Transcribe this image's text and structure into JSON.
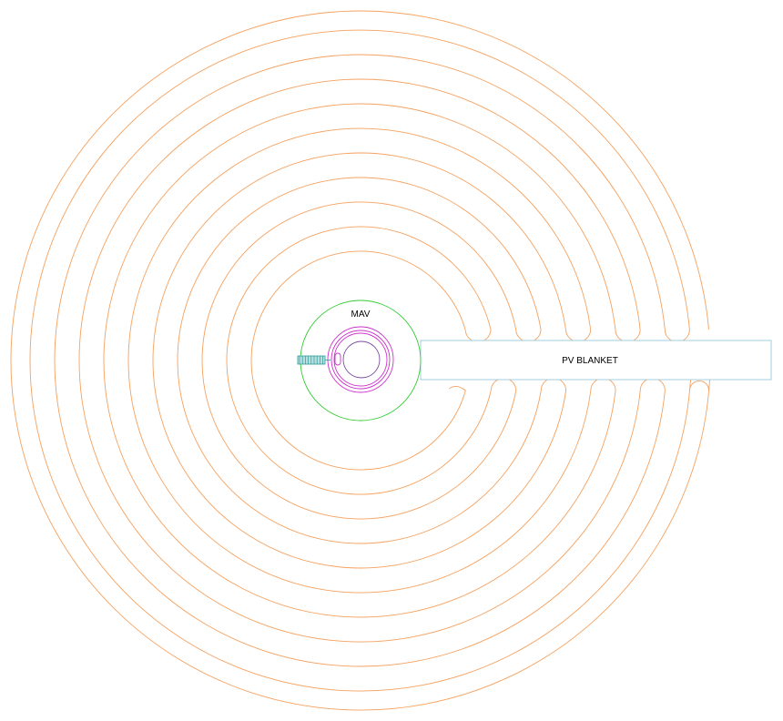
{
  "labels": {
    "mav": "MAV",
    "blanket": "PV BLANKET"
  },
  "colors": {
    "coil": "#f5a15f",
    "mav_ring": "#33cc33",
    "inner_ring": "#cc33cc",
    "inner_core": "#7a4fa0",
    "blanket_outline": "#99c8dc",
    "connector": "#2e9a9a",
    "connector_fill": "#b8e0e0"
  }
}
